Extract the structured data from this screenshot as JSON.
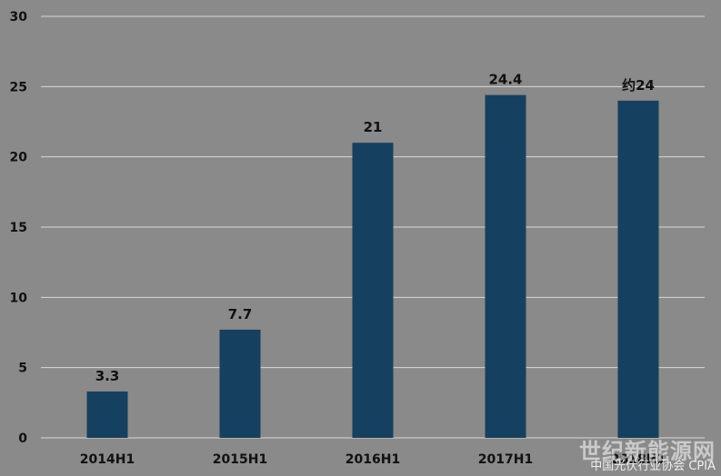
{
  "chart_data": {
    "type": "bar",
    "categories": [
      "2014H1",
      "2015H1",
      "2016H1",
      "2017H1",
      "2018H1"
    ],
    "values": [
      3.3,
      7.7,
      21,
      24.4,
      24
    ],
    "data_labels": [
      "3.3",
      "7.7",
      "21",
      "24.4",
      "约24"
    ],
    "ylim": [
      0,
      30
    ],
    "yticks": [
      "0",
      "5",
      "10",
      "15",
      "20",
      "25",
      "30"
    ],
    "grid": true,
    "colors": {
      "background": "#8a8a8a",
      "bar": "#16405f",
      "grid": "#d8d8d8"
    }
  },
  "watermark": {
    "line1": "世纪新能源网",
    "line2": "中国光伏行业协会 CPIA"
  }
}
